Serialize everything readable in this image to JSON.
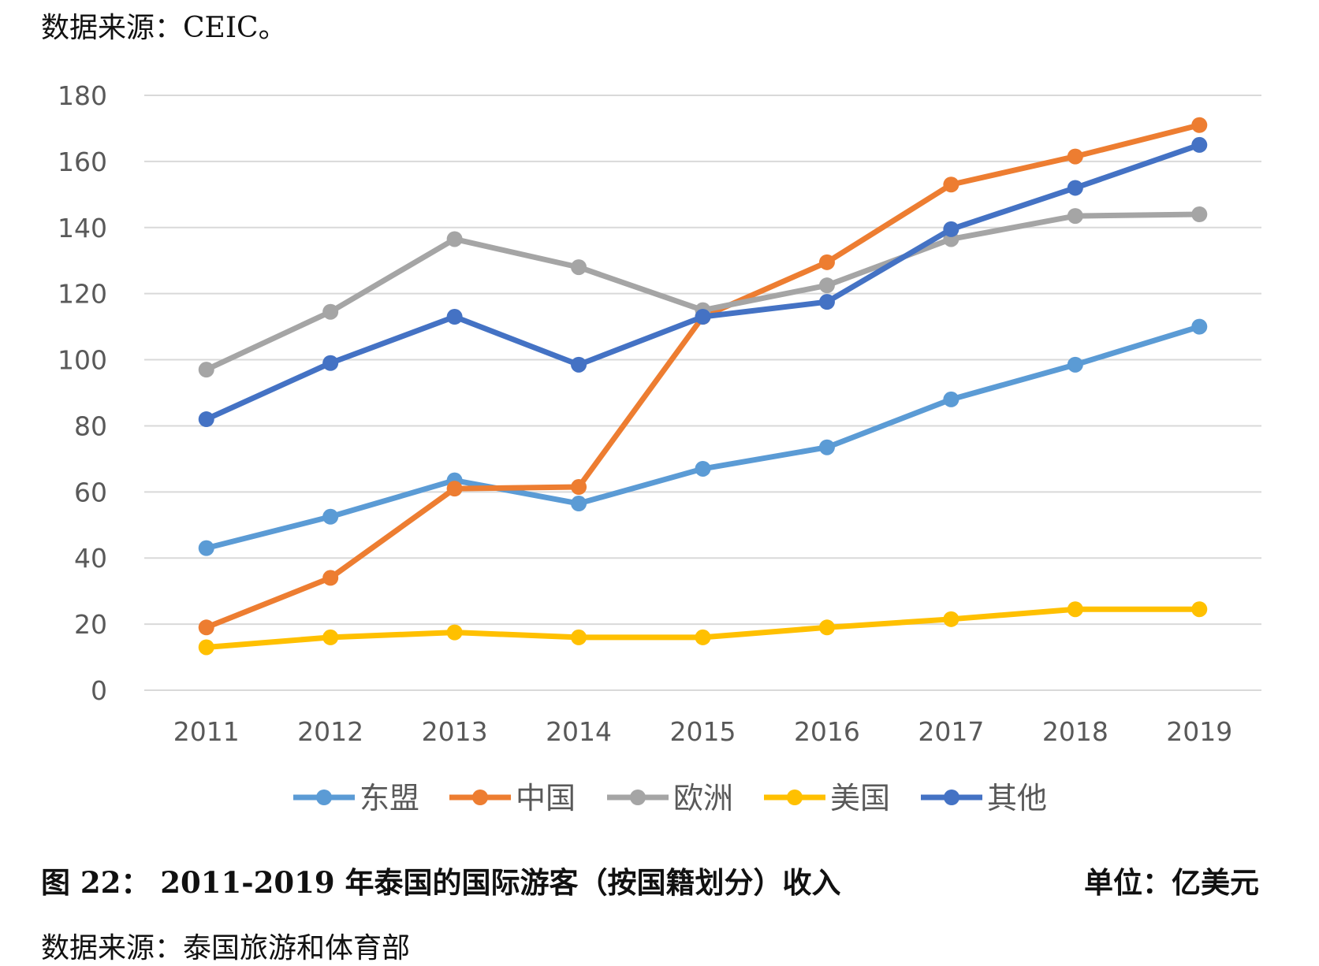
{
  "header": {
    "source_top": "数据来源：CEIC。"
  },
  "chart_data": {
    "type": "line",
    "title": "",
    "xlabel": "",
    "ylabel": "",
    "categories": [
      "2011",
      "2012",
      "2013",
      "2014",
      "2015",
      "2016",
      "2017",
      "2018",
      "2019"
    ],
    "ylim": [
      0,
      180
    ],
    "yticks": [
      0,
      20,
      40,
      60,
      80,
      100,
      120,
      140,
      160,
      180
    ],
    "grid": true,
    "legend_position": "bottom",
    "series": [
      {
        "name": "东盟",
        "color": "#5b9bd5",
        "values": [
          43,
          52.5,
          63.5,
          56.5,
          67,
          73.5,
          88,
          98.5,
          110
        ]
      },
      {
        "name": "中国",
        "color": "#ed7d31",
        "values": [
          19,
          34,
          61,
          61.5,
          113,
          129.5,
          153,
          161.5,
          171
        ]
      },
      {
        "name": "欧洲",
        "color": "#a5a5a5",
        "values": [
          97,
          114.5,
          136.5,
          128,
          115,
          122.5,
          136.5,
          143.5,
          144
        ]
      },
      {
        "name": "美国",
        "color": "#ffc000",
        "values": [
          13,
          16,
          17.5,
          16,
          16,
          19,
          21.5,
          24.5,
          24.5
        ]
      },
      {
        "name": "其他",
        "color": "#4472c4",
        "values": [
          82,
          99,
          113,
          98.5,
          113,
          117.5,
          139.5,
          152,
          165
        ]
      }
    ]
  },
  "footer": {
    "caption": "图  22：  2011-2019 年泰国的国际游客（按国籍划分）收入",
    "unit": "单位：亿美元",
    "source_bottom": "数据来源：泰国旅游和体育部"
  }
}
